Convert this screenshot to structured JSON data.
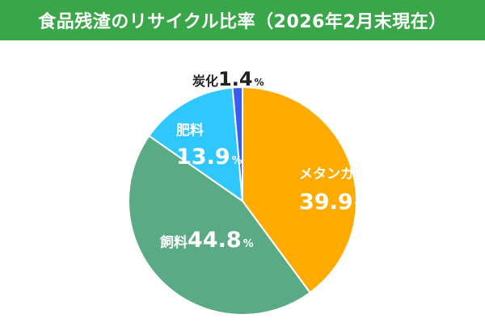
{
  "title": "食品残渣のリサイクル比率（2026年2月末現在）",
  "colors": {
    "header_bg": "#3aa64a",
    "header_text": "#ffffff"
  },
  "chart_data": {
    "type": "pie",
    "start": "12 o'clock, clockwise",
    "slices": [
      {
        "name": "メタンガス",
        "value": 39.9,
        "unit": "%",
        "color": "#ffab00",
        "label_color": "#ffffff"
      },
      {
        "name": "飼料",
        "value": 44.8,
        "unit": "%",
        "color": "#5aaa86",
        "label_color": "#ffffff"
      },
      {
        "name": "肥料",
        "value": 13.9,
        "unit": "%",
        "color": "#2ec7ff",
        "label_color": "#ffffff"
      },
      {
        "name": "炭化",
        "value": 1.4,
        "unit": "%",
        "color": "#3b5cf0",
        "label_color": "#222222"
      }
    ]
  }
}
